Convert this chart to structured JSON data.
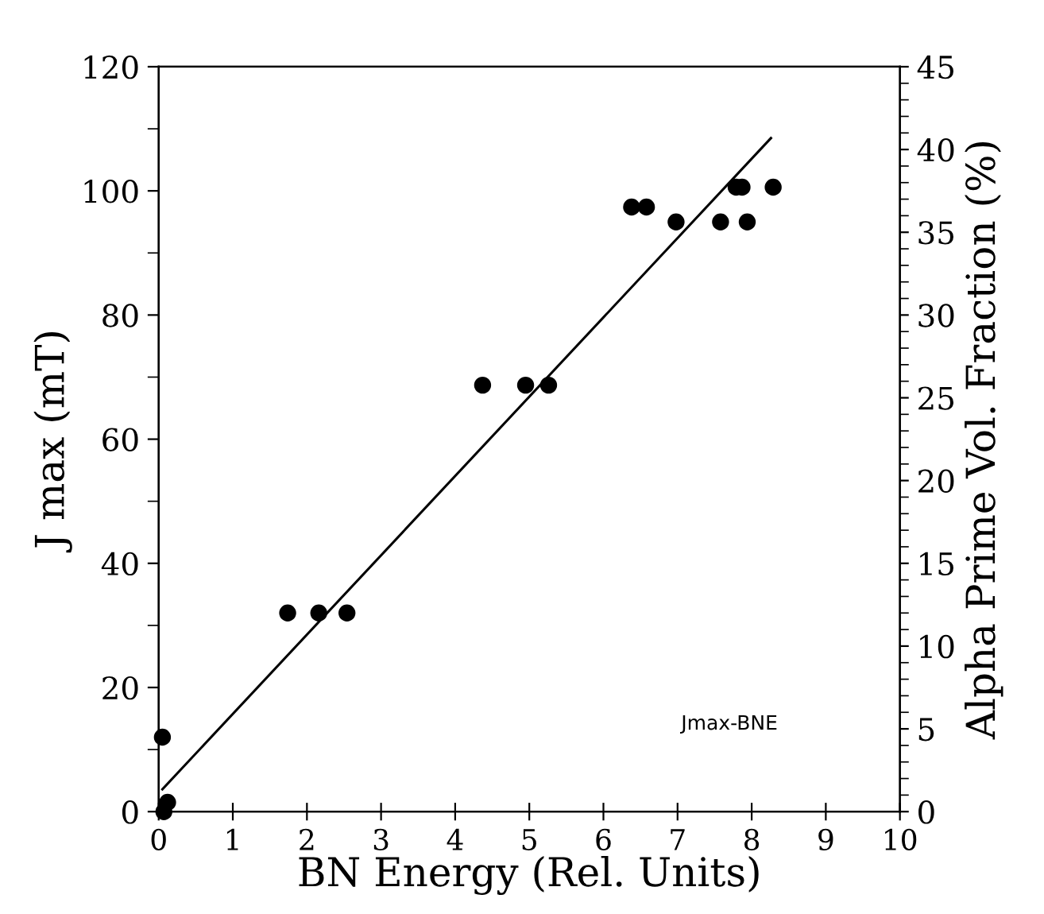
{
  "chart_data": {
    "type": "scatter",
    "xlabel": "BN Energy (Rel. Units)",
    "ylabel": "J max (mT)",
    "y2label": "Alpha Prime Vol. Fraction (%)",
    "series": [
      {
        "marker": "circle",
        "color": "#000000",
        "x": [
          0.05,
          0.12,
          0.07,
          1.74,
          2.16,
          2.54,
          4.37,
          4.95,
          5.26,
          6.38,
          6.58,
          6.98,
          7.58,
          7.94,
          7.79,
          7.87,
          8.29
        ],
        "values": [
          12,
          1.5,
          0,
          32,
          32,
          32,
          68.7,
          68.7,
          68.7,
          97.4,
          97.4,
          95,
          95,
          95,
          100.6,
          100.6,
          100.6
        ]
      },
      {
        "type": "line",
        "color": "#000000",
        "x": [
          0.05,
          8.26
        ],
        "values": [
          3.6,
          108.5
        ]
      }
    ],
    "xlim": [
      0,
      10
    ],
    "xticks": [
      0,
      1,
      2,
      3,
      4,
      5,
      6,
      7,
      8,
      9,
      10
    ],
    "ylim": [
      0,
      120
    ],
    "yticks": [
      0,
      20,
      40,
      60,
      80,
      100,
      120
    ],
    "y2lim": [
      0,
      45
    ],
    "y2ticks": [
      0,
      5,
      10,
      15,
      20,
      25,
      30,
      35,
      40,
      45
    ],
    "annotations": [
      "Jmax-BNE"
    ],
    "grid": false,
    "legend": false
  }
}
